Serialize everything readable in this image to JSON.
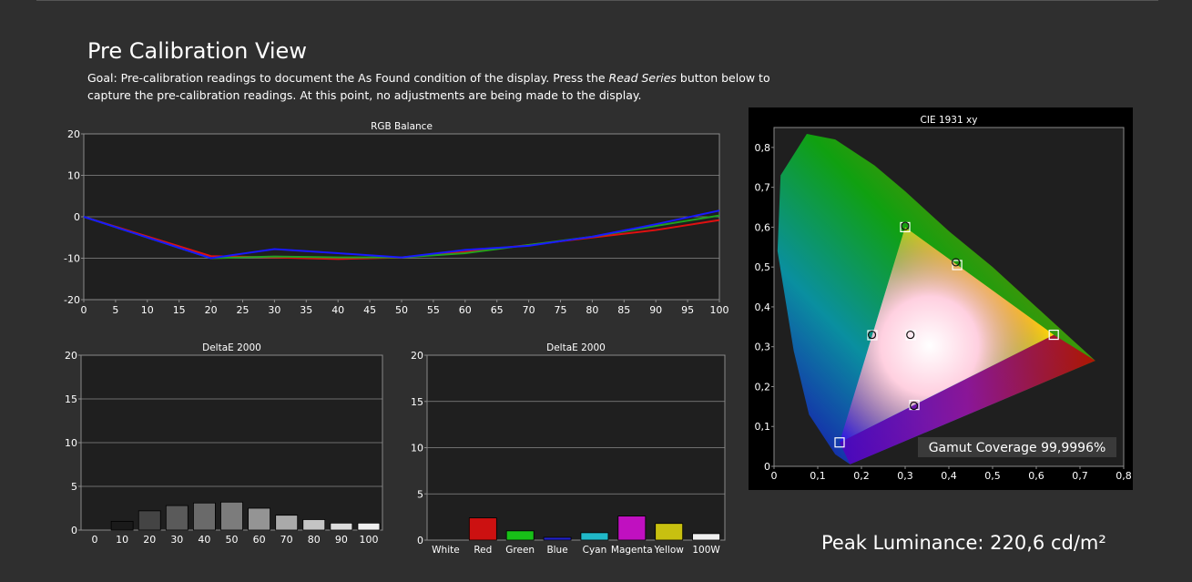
{
  "header": {
    "title": "Pre Calibration View",
    "goal_prefix": "Goal: Pre-calibration readings to document the As Found condition of the display. Press the ",
    "goal_button": "Read Series",
    "goal_suffix": " button below to capture the pre-calibration readings. At this point, no adjustments are being made to the display."
  },
  "peak_luminance": "Peak Luminance: 220,6 cd/m²",
  "colors": {
    "panel": "#1f1f1f",
    "grid": "#8a8a8a",
    "red": "#e01010",
    "green": "#20a020",
    "blue": "#1818ff",
    "bar_red": "#cc1111",
    "bar_green": "#18c018",
    "bar_blue": "#2222cc",
    "bar_cyan": "#20b8c8",
    "bar_magenta": "#c010c0",
    "bar_yellow": "#c8c010",
    "bar_white": "#f0f0f0"
  },
  "chart_data": [
    {
      "type": "line",
      "title": "RGB Balance",
      "x": [
        0,
        20,
        30,
        40,
        50,
        60,
        70,
        80,
        90,
        100
      ],
      "xticks": [
        "0",
        "5",
        "10",
        "15",
        "20",
        "25",
        "30",
        "35",
        "40",
        "45",
        "50",
        "55",
        "60",
        "65",
        "70",
        "75",
        "80",
        "85",
        "90",
        "95",
        "100"
      ],
      "yticks": [
        "20",
        "10",
        "0",
        "-10",
        "-20"
      ],
      "ylim": [
        -20,
        20
      ],
      "xlim": [
        0,
        100
      ],
      "series": [
        {
          "color": "red",
          "values": [
            0,
            -9.5,
            -9.8,
            -10.2,
            -9.8,
            -8.5,
            -6.8,
            -5.0,
            -3.2,
            -0.8
          ]
        },
        {
          "color": "green",
          "values": [
            0,
            -10.0,
            -9.6,
            -9.8,
            -9.8,
            -8.8,
            -6.8,
            -4.8,
            -2.2,
            0.3
          ]
        },
        {
          "color": "blue",
          "values": [
            0,
            -10.0,
            -7.8,
            -8.8,
            -9.8,
            -8.0,
            -7.0,
            -4.8,
            -1.8,
            1.5
          ]
        }
      ]
    },
    {
      "type": "bar",
      "title": "DeltaE 2000",
      "categories": [
        "0",
        "10",
        "20",
        "30",
        "40",
        "50",
        "60",
        "70",
        "80",
        "90",
        "100"
      ],
      "values": [
        0,
        1.0,
        2.2,
        2.8,
        3.1,
        3.2,
        2.5,
        1.7,
        1.2,
        0.8,
        0.8
      ],
      "colors": [
        "#000000",
        "#1a1a1a",
        "#444444",
        "#5a5a5a",
        "#6a6a6a",
        "#7c7c7c",
        "#949494",
        "#aaaaaa",
        "#c4c4c4",
        "#dcdcdc",
        "#f0f0f0"
      ],
      "yticks": [
        "20",
        "15",
        "10",
        "5",
        "0"
      ],
      "ylim": [
        0,
        20
      ]
    },
    {
      "type": "bar",
      "title": "DeltaE 2000",
      "categories": [
        "White",
        "Red",
        "Green",
        "Blue",
        "Cyan",
        "Magenta",
        "Yellow",
        "100W"
      ],
      "values": [
        0,
        2.4,
        1.0,
        0.3,
        0.8,
        2.6,
        1.8,
        0.7
      ],
      "colors": [
        "#f0f0f0",
        "#cc1111",
        "#18c018",
        "#2222cc",
        "#20b8c8",
        "#c010c0",
        "#c8c010",
        "#f0f0f0"
      ],
      "yticks": [
        "20",
        "15",
        "10",
        "5",
        "0"
      ],
      "ylim": [
        0,
        20
      ]
    },
    {
      "type": "scatter",
      "title": "CIE 1931 xy",
      "xticks": [
        "0",
        "0,1",
        "0,2",
        "0,3",
        "0,4",
        "0,5",
        "0,6",
        "0,7",
        "0,8"
      ],
      "yticks": [
        "0,8",
        "0,7",
        "0,6",
        "0,5",
        "0,4",
        "0,3",
        "0,2",
        "0,1",
        "0"
      ],
      "xlim": [
        0,
        0.8
      ],
      "ylim": [
        0,
        0.85
      ],
      "targets": [
        {
          "name": "R",
          "x": 0.64,
          "y": 0.33
        },
        {
          "name": "G",
          "x": 0.3,
          "y": 0.6
        },
        {
          "name": "B",
          "x": 0.15,
          "y": 0.06
        },
        {
          "name": "C",
          "x": 0.225,
          "y": 0.329
        },
        {
          "name": "M",
          "x": 0.321,
          "y": 0.154
        },
        {
          "name": "Y",
          "x": 0.419,
          "y": 0.505
        },
        {
          "name": "W",
          "x": 0.3127,
          "y": 0.329
        }
      ],
      "measured": [
        {
          "x": 0.3,
          "y": 0.603
        },
        {
          "x": 0.416,
          "y": 0.512
        },
        {
          "x": 0.224,
          "y": 0.33
        },
        {
          "x": 0.312,
          "y": 0.33
        },
        {
          "x": 0.32,
          "y": 0.152
        }
      ],
      "gamut_label": "Gamut Coverage 99,9996%"
    }
  ]
}
